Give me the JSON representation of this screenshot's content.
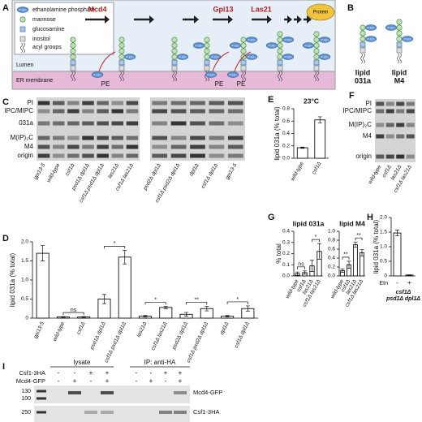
{
  "panel_labels": [
    "A",
    "B",
    "C",
    "D",
    "E",
    "F",
    "G",
    "H",
    "I"
  ],
  "panel_a": {
    "legend": [
      "ethanolamine phosphate",
      "mannose",
      "glucosamine",
      "inositol",
      "acyl groups"
    ],
    "icon": "P-Etn",
    "enzymes": [
      "Mcd4",
      "Gpi13",
      "Las21"
    ],
    "protein": "Protein",
    "lumen": "Lumen",
    "membrane": "ER membrane",
    "pe": "PE"
  },
  "panel_b": {
    "labels": [
      [
        "lipid",
        "031a"
      ],
      [
        "lipid",
        "M4"
      ]
    ]
  },
  "panel_c": {
    "bands": [
      "PI",
      "IPC/MIPC",
      "031a",
      "M(IP)₂C",
      "M4",
      "origin"
    ],
    "lanes": [
      "gpi13-5",
      "wild-type",
      "csf1Δ",
      "psd1Δ dpl1Δ",
      "csf1Δ psd1Δ dpl1Δ",
      "las21Δ",
      "csf1Δ las21Δ",
      "psd2Δ dpl1Δ",
      "csf1Δ psd2Δ dpl1Δ",
      "dpl1Δ",
      "csf1Δ dpl1Δ",
      "gpi13-5"
    ]
  },
  "panel_f": {
    "bands": [
      "PI",
      "IPC/MIPC",
      "M(IP)₂C",
      "M4",
      "origin"
    ],
    "lanes": [
      "wild-type",
      "csf1Δ",
      "las21Δ",
      "csf1Δ las21Δ"
    ]
  },
  "panel_i": {
    "groups": [
      "lysate",
      "IP: anti-HA"
    ],
    "rows": [
      {
        "label": "Csf1-3HA",
        "signs": [
          "-",
          "-",
          "+",
          "+",
          "-",
          "-",
          "+",
          "+"
        ]
      },
      {
        "label": "Mcd4-GFP",
        "signs": [
          "-",
          "+",
          "-",
          "+",
          "-",
          "+",
          "-",
          "+"
        ]
      }
    ],
    "markers": [
      "130",
      "100",
      "250"
    ],
    "bands": [
      "Mcd4-GFP",
      "Csf1-3HA"
    ]
  },
  "chart_data": [
    {
      "type": "bar",
      "ylabel": "lipid 031a (% total)",
      "categories": [
        "gpi13-5",
        "wild-type",
        "csf1Δ",
        "psd1Δ dpl1Δ",
        "csf1Δ psd1Δ dpl1Δ",
        "las21Δ",
        "csf1Δ las21Δ",
        "psd2Δ dpl1Δ",
        "csf1Δ psd2Δ dpl1Δ",
        "dpl1Δ",
        "csf1Δ dpl1Δ"
      ],
      "values": [
        1.7,
        0.03,
        0.03,
        0.5,
        1.6,
        0.05,
        0.28,
        0.1,
        0.25,
        0.05,
        0.25
      ],
      "errors": [
        0.2,
        0.01,
        0.01,
        0.12,
        0.18,
        0.02,
        0.03,
        0.05,
        0.06,
        0.02,
        0.07
      ],
      "color": "#ffffff",
      "ylim": [
        0,
        2
      ],
      "yticks": [
        0,
        0.5,
        {
          "value": 1,
          "label": "1.0"
        },
        1.5,
        {
          "value": 2,
          "label": "2.0"
        }
      ],
      "significance": [
        {
          "categories": [
            1,
            2
          ],
          "label": "ns"
        },
        {
          "categories": [
            3,
            4
          ],
          "label": "*"
        },
        {
          "categories": [
            5,
            6
          ],
          "label": "*"
        },
        {
          "categories": [
            7,
            8
          ],
          "label": "**"
        },
        {
          "categories": [
            9,
            10
          ],
          "label": "*"
        }
      ]
    },
    {
      "type": "bar",
      "title": "23°C",
      "ylabel": "lipid 031a (% total)",
      "categories": [
        "wild-type",
        "csf1Δ"
      ],
      "values": [
        0.17,
        0.62
      ],
      "errors": [
        0.01,
        0.05
      ],
      "color": "#ffffff",
      "ylim": [
        0,
        0.8
      ],
      "yticks": [
        {
          "value": 0,
          "label": "0.0"
        },
        0.2,
        0.4,
        0.6,
        0.8
      ]
    },
    {
      "type": "bar",
      "title": "lipid 031a",
      "ylabel": "% total",
      "categories": [
        "wild-type",
        "csf1Δ",
        "las21Δ",
        "csf1Δ las21Δ"
      ],
      "values": [
        0.02,
        0.03,
        0.09,
        0.22
      ],
      "errors": [
        0.015,
        0.015,
        0.05,
        0.07
      ],
      "color": "#ffffff",
      "ylim": [
        0,
        0.4
      ],
      "yticks": [
        {
          "value": 0,
          "label": "0.0"
        },
        0.1,
        0.2,
        0.3,
        0.4
      ],
      "significance": [
        {
          "categories": [
            0,
            1
          ],
          "label": "ns"
        },
        {
          "categories": [
            2,
            3
          ],
          "label": "*"
        }
      ]
    },
    {
      "type": "bar",
      "title": "lipid M4",
      "categories": [
        "wild-type",
        "csf1Δ",
        "las21Δ",
        "csf1Δ las21Δ"
      ],
      "values": [
        0.12,
        0.25,
        0.7,
        0.52
      ],
      "errors": [
        0.04,
        0.08,
        0.06,
        0.07
      ],
      "color": "#ffffff",
      "ylim": [
        0,
        1
      ],
      "yticks": [
        {
          "value": 0,
          "label": "0.0"
        },
        0.2,
        0.4,
        0.6,
        0.8,
        {
          "value": 1,
          "label": "1.0"
        }
      ],
      "significance": [
        {
          "categories": [
            0,
            1
          ],
          "label": "**"
        },
        {
          "categories": [
            2,
            3
          ],
          "label": "**"
        }
      ]
    },
    {
      "type": "bar",
      "ylabel": "lipid 031a (% total)",
      "categories": [
        "-",
        "+"
      ],
      "values": [
        1.47,
        0.03
      ],
      "errors": [
        0.1,
        0.01
      ],
      "color": "#ffffff",
      "ylim": [
        0,
        2
      ],
      "yticks": [
        0,
        0.5,
        {
          "value": 1,
          "label": "1.0"
        },
        1.5,
        {
          "value": 2,
          "label": "2.0"
        }
      ],
      "row_label": "Etn",
      "xlabel": [
        "csf1Δ",
        "psd1Δ dpl1Δ"
      ]
    }
  ]
}
